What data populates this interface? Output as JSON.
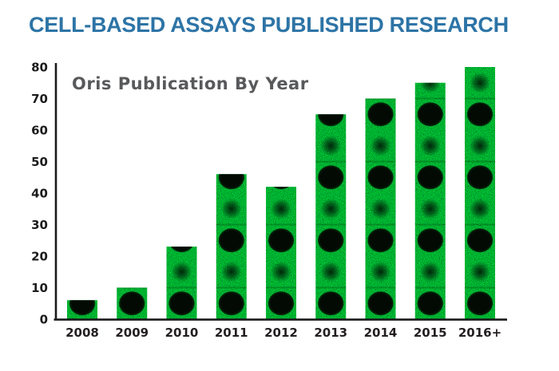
{
  "header": {
    "title": "CELL-BASED ASSAYS PUBLISHED RESEARCH",
    "color": "#2d74a6"
  },
  "chart_data": {
    "type": "bar",
    "title": "Oris Publication By Year",
    "title_color": "#58595b",
    "categories": [
      "2008",
      "2009",
      "2010",
      "2011",
      "2012",
      "2013",
      "2014",
      "2015",
      "2016+"
    ],
    "values": [
      6,
      10,
      23,
      46,
      42,
      65,
      70,
      75,
      80
    ],
    "xlabel": "",
    "ylabel": "",
    "ylim": [
      0,
      80
    ],
    "yticks": [
      0,
      10,
      20,
      30,
      40,
      50,
      60,
      70,
      80
    ],
    "grid": false,
    "legend": false,
    "bar_fill_description": "fluorescent-green cell microscopy texture with dark circular cell-exclusion zones repeating every 20 units (large spot at 5,25,45,65; faint spot at 15,35,55,75)",
    "bar_green_bright": "#25b52a",
    "bar_green_dark": "#052d08",
    "spot_color": "#030a03",
    "axis_color": "#1a1a1a",
    "tick_label_color": "#231f20"
  }
}
